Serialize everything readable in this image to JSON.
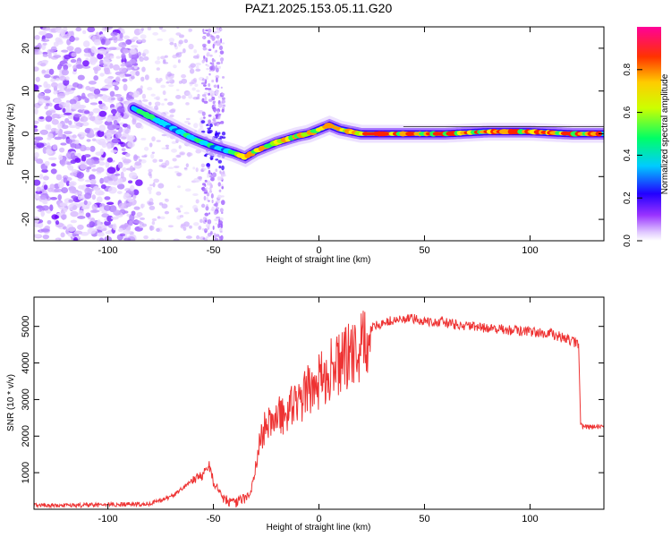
{
  "title": "PAZ1.2025.153.05.11.G20",
  "chart_data": [
    {
      "type": "heatmap",
      "xlabel": "Height of straight line (km)",
      "ylabel": "Frequency (Hz)",
      "xlim": [
        -135,
        135
      ],
      "ylim": [
        -25,
        25
      ],
      "xticks": [
        -100,
        -50,
        0,
        50,
        100
      ],
      "yticks": [
        -20,
        -10,
        0,
        10,
        20
      ],
      "grid": false,
      "colorbar": {
        "label": "Normalized spectral amplitude",
        "range": [
          0,
          1
        ],
        "ticks": [
          0.0,
          0.2,
          0.4,
          0.6,
          0.8
        ],
        "colors": [
          "#ffffff",
          "#cc99ff",
          "#6600ff",
          "#0000ff",
          "#00ffff",
          "#00ff00",
          "#ffff00",
          "#ff8000",
          "#ff0000",
          "#ff0080"
        ]
      },
      "ridge": {
        "x": [
          -88,
          -80,
          -70,
          -60,
          -50,
          -40,
          -35,
          -30,
          -20,
          -10,
          -5,
          0,
          5,
          10,
          15,
          20,
          40,
          60,
          80,
          100,
          120,
          135
        ],
        "y": [
          6,
          4,
          1.5,
          -1,
          -3,
          -4.5,
          -5.5,
          -4,
          -2,
          -0.5,
          0,
          1,
          2,
          1,
          0.5,
          0,
          0,
          0,
          0.5,
          0.5,
          0,
          0
        ]
      }
    },
    {
      "type": "line",
      "xlabel": "Height of straight line (km)",
      "ylabel": "SNR (10 * v/v)",
      "xlim": [
        -135,
        135
      ],
      "ylim": [
        0,
        5800
      ],
      "xticks": [
        -100,
        -50,
        0,
        50,
        100
      ],
      "yticks": [
        1000,
        2000,
        3000,
        4000,
        5000
      ],
      "grid": false,
      "color": "#ee3333",
      "x": [
        -135,
        -120,
        -100,
        -80,
        -75,
        -70,
        -65,
        -60,
        -55,
        -52,
        -50,
        -47,
        -45,
        -40,
        -35,
        -32,
        -30,
        -28,
        -25,
        -20,
        -15,
        -10,
        -5,
        0,
        5,
        10,
        15,
        20,
        25,
        30,
        35,
        40,
        45,
        50,
        60,
        70,
        80,
        90,
        100,
        110,
        115,
        120,
        123,
        124,
        125,
        130,
        135
      ],
      "y": [
        120,
        100,
        120,
        150,
        250,
        350,
        550,
        800,
        950,
        1200,
        750,
        450,
        300,
        150,
        300,
        550,
        1100,
        1900,
        2300,
        2500,
        2700,
        2900,
        3250,
        3500,
        3800,
        4000,
        4200,
        4400,
        4950,
        5100,
        5150,
        5200,
        5200,
        5150,
        5100,
        5000,
        4950,
        4900,
        4850,
        4800,
        4700,
        4600,
        4500,
        2300,
        2250,
        2250,
        2250
      ]
    }
  ]
}
